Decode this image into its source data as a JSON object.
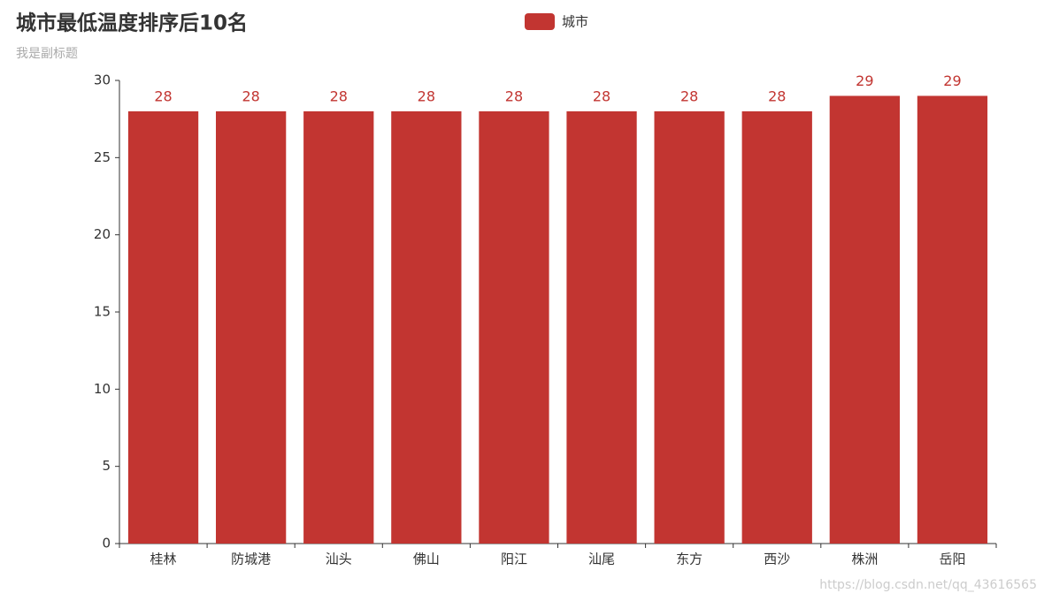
{
  "chart_data": {
    "type": "bar",
    "title": "城市最低温度排序后10名",
    "subtitle": "我是副标题",
    "categories": [
      "桂林",
      "防城港",
      "汕头",
      "佛山",
      "阳江",
      "汕尾",
      "东方",
      "西沙",
      "株洲",
      "岳阳"
    ],
    "series": [
      {
        "name": "城市",
        "color": "#c23531",
        "values": [
          28,
          28,
          28,
          28,
          28,
          28,
          28,
          28,
          29,
          29
        ]
      }
    ],
    "ylim": [
      0,
      30
    ],
    "yticks": [
      0,
      5,
      10,
      15,
      20,
      25,
      30
    ],
    "grid": false,
    "legend": "top",
    "watermark": "https://blog.csdn.net/qq_43616565"
  }
}
